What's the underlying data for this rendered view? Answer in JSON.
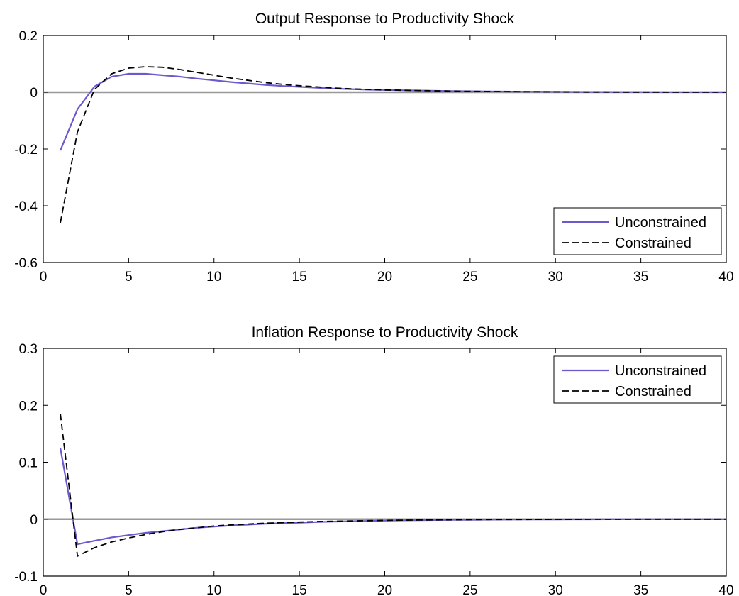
{
  "chart_data": [
    {
      "type": "line",
      "title": "Output Response to Productivity Shock",
      "xlim": [
        0,
        40
      ],
      "ylim": [
        -0.6,
        0.2
      ],
      "xticks": [
        0,
        5,
        10,
        15,
        20,
        25,
        30,
        35,
        40
      ],
      "yticks": [
        -0.6,
        -0.4,
        -0.2,
        0,
        0.2
      ],
      "xtick_labels": [
        "0",
        "5",
        "10",
        "15",
        "20",
        "25",
        "30",
        "35",
        "40"
      ],
      "ytick_labels": [
        "-0.6",
        "-0.4",
        "-0.2",
        "0",
        "0.2"
      ],
      "zero_line": true,
      "grid": false,
      "legend_position": "bottom-right",
      "x": [
        1,
        2,
        3,
        4,
        5,
        6,
        7,
        8,
        9,
        10,
        11,
        12,
        13,
        14,
        15,
        16,
        17,
        18,
        19,
        20,
        21,
        22,
        23,
        24,
        25,
        26,
        27,
        28,
        29,
        30,
        31,
        32,
        33,
        34,
        35,
        36,
        37,
        38,
        39,
        40
      ],
      "series": [
        {
          "name": "Unconstrained",
          "style": "solid",
          "color": "#6a5acd",
          "values": [
            -0.205,
            -0.06,
            0.02,
            0.055,
            0.065,
            0.065,
            0.06,
            0.055,
            0.048,
            0.042,
            0.036,
            0.031,
            0.026,
            0.022,
            0.019,
            0.016,
            0.013,
            0.011,
            0.009,
            0.008,
            0.007,
            0.006,
            0.005,
            0.004,
            0.0035,
            0.003,
            0.0025,
            0.002,
            0.002,
            0.0015,
            0.0012,
            0.001,
            0.001,
            0.0008,
            0.0007,
            0.0006,
            0.0005,
            0.0004,
            0.0003,
            0.0003
          ]
        },
        {
          "name": "Constrained",
          "style": "dashed",
          "color": "#000000",
          "values": [
            -0.46,
            -0.14,
            0.01,
            0.065,
            0.085,
            0.09,
            0.088,
            0.08,
            0.07,
            0.06,
            0.05,
            0.042,
            0.034,
            0.028,
            0.023,
            0.019,
            0.015,
            0.012,
            0.01,
            0.008,
            0.007,
            0.006,
            0.005,
            0.004,
            0.0033,
            0.0027,
            0.0022,
            0.0018,
            0.0015,
            0.0012,
            0.001,
            0.0008,
            0.0007,
            0.0006,
            0.0005,
            0.0004,
            0.0003,
            0.0003,
            0.0002,
            0.0002
          ]
        }
      ]
    },
    {
      "type": "line",
      "title": "Inflation Response to Productivity Shock",
      "xlim": [
        0,
        40
      ],
      "ylim": [
        -0.1,
        0.3
      ],
      "xticks": [
        0,
        5,
        10,
        15,
        20,
        25,
        30,
        35,
        40
      ],
      "yticks": [
        -0.1,
        0,
        0.1,
        0.2,
        0.3
      ],
      "xtick_labels": [
        "0",
        "5",
        "10",
        "15",
        "20",
        "25",
        "30",
        "35",
        "40"
      ],
      "ytick_labels": [
        "-0.1",
        "0",
        "0.1",
        "0.2",
        "0.3"
      ],
      "zero_line": true,
      "grid": false,
      "legend_position": "top-right",
      "x": [
        1,
        2,
        3,
        4,
        5,
        6,
        7,
        8,
        9,
        10,
        11,
        12,
        13,
        14,
        15,
        16,
        17,
        18,
        19,
        20,
        21,
        22,
        23,
        24,
        25,
        26,
        27,
        28,
        29,
        30,
        31,
        32,
        33,
        34,
        35,
        36,
        37,
        38,
        39,
        40
      ],
      "series": [
        {
          "name": "Unconstrained",
          "style": "solid",
          "color": "#6a5acd",
          "values": [
            0.125,
            -0.044,
            -0.038,
            -0.032,
            -0.028,
            -0.024,
            -0.021,
            -0.018,
            -0.015,
            -0.013,
            -0.011,
            -0.0095,
            -0.008,
            -0.007,
            -0.006,
            -0.005,
            -0.0042,
            -0.0035,
            -0.003,
            -0.0025,
            -0.002,
            -0.0017,
            -0.0014,
            -0.0012,
            -0.001,
            -0.0008,
            -0.0007,
            -0.0006,
            -0.0005,
            -0.0004,
            -0.0003,
            -0.0003,
            -0.0002,
            -0.0002,
            -0.0002,
            -0.0001,
            -0.0001,
            -0.0001,
            -0.0001,
            0
          ]
        },
        {
          "name": "Constrained",
          "style": "dashed",
          "color": "#000000",
          "values": [
            0.185,
            -0.065,
            -0.05,
            -0.04,
            -0.033,
            -0.027,
            -0.022,
            -0.018,
            -0.015,
            -0.012,
            -0.01,
            -0.0085,
            -0.007,
            -0.006,
            -0.005,
            -0.0042,
            -0.0035,
            -0.003,
            -0.0025,
            -0.002,
            -0.0017,
            -0.0014,
            -0.0012,
            -0.001,
            -0.0008,
            -0.0007,
            -0.0006,
            -0.0005,
            -0.0004,
            -0.0003,
            -0.0003,
            -0.0002,
            -0.0002,
            -0.0002,
            -0.0001,
            -0.0001,
            -0.0001,
            -0.0001,
            0,
            0
          ]
        }
      ]
    }
  ]
}
